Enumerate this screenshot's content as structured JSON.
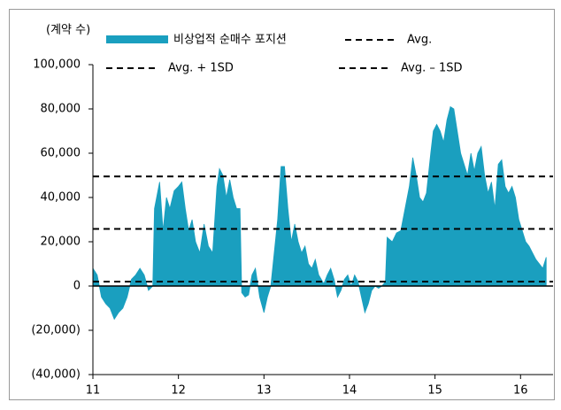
{
  "chart_data": {
    "type": "area",
    "y_label": "(계약 수)",
    "series": [
      {
        "name": "비상업적 순매수 포지션",
        "color": "#1a9fbf",
        "x": [
          11.0,
          11.05,
          11.1,
          11.15,
          11.2,
          11.25,
          11.3,
          11.35,
          11.4,
          11.45,
          11.5,
          11.55,
          11.6,
          11.65,
          11.7,
          11.72,
          11.78,
          11.82,
          11.86,
          11.9,
          11.95,
          12.0,
          12.04,
          12.08,
          12.12,
          12.16,
          12.2,
          12.25,
          12.3,
          12.35,
          12.4,
          12.45,
          12.48,
          12.52,
          12.56,
          12.6,
          12.64,
          12.68,
          12.72,
          12.74,
          12.78,
          12.82,
          12.86,
          12.9,
          12.95,
          13.0,
          13.04,
          13.08,
          13.12,
          13.16,
          13.2,
          13.24,
          13.28,
          13.32,
          13.36,
          13.4,
          13.44,
          13.48,
          13.52,
          13.56,
          13.6,
          13.64,
          13.7,
          13.74,
          13.78,
          13.82,
          13.86,
          13.9,
          13.94,
          13.98,
          14.02,
          14.06,
          14.1,
          14.14,
          14.18,
          14.22,
          14.26,
          14.3,
          14.34,
          14.38,
          14.42,
          14.44,
          14.5,
          14.55,
          14.6,
          14.65,
          14.7,
          14.74,
          14.78,
          14.82,
          14.86,
          14.9,
          14.95,
          14.98,
          15.02,
          15.06,
          15.1,
          15.14,
          15.18,
          15.22,
          15.26,
          15.3,
          15.34,
          15.38,
          15.42,
          15.46,
          15.5,
          15.54,
          15.58,
          15.62,
          15.66,
          15.7,
          15.74,
          15.78,
          15.82,
          15.86,
          15.9,
          15.94,
          15.98,
          16.02,
          16.06,
          16.1,
          16.14,
          16.18,
          16.22,
          16.26,
          16.3
        ],
        "values": [
          8000,
          5000,
          -5000,
          -8000,
          -10000,
          -15000,
          -12000,
          -10000,
          -5000,
          3000,
          5000,
          8000,
          5000,
          -2000,
          0,
          35000,
          47000,
          25000,
          40000,
          35000,
          43000,
          45000,
          47000,
          35000,
          25000,
          30000,
          20000,
          15000,
          28000,
          18000,
          15000,
          45000,
          53000,
          50000,
          40000,
          48000,
          40000,
          35000,
          35000,
          -3000,
          -5000,
          -4000,
          5000,
          8000,
          -5000,
          -12000,
          -5000,
          0,
          15000,
          30000,
          54000,
          54000,
          35000,
          20000,
          28000,
          20000,
          15000,
          18000,
          10000,
          8000,
          12000,
          5000,
          1000,
          5000,
          8000,
          3000,
          -5000,
          -2000,
          3000,
          5000,
          0,
          5000,
          2000,
          -5000,
          -12000,
          -8000,
          -2000,
          0,
          -1000,
          0,
          2000,
          22000,
          20000,
          24000,
          25000,
          35000,
          45000,
          58000,
          50000,
          40000,
          38000,
          42000,
          60000,
          70000,
          73000,
          70000,
          65000,
          75000,
          81000,
          80000,
          70000,
          60000,
          55000,
          50000,
          60000,
          52000,
          60000,
          63000,
          50000,
          42000,
          47000,
          35000,
          55000,
          57000,
          45000,
          42000,
          45000,
          40000,
          30000,
          25000,
          20000,
          18000,
          15000,
          12000,
          10000,
          8000,
          13000
        ]
      }
    ],
    "reference_lines": [
      {
        "name": "Avg.",
        "value": 25800
      },
      {
        "name": "Avg. + 1SD",
        "value": 49500
      },
      {
        "name": "Avg. – 1SD",
        "value": 2000
      }
    ],
    "xlim": [
      11,
      16.38
    ],
    "xticks": [
      11,
      12,
      13,
      14,
      15,
      16
    ],
    "ylim": [
      -40000,
      100000
    ],
    "yticks": [
      {
        "value": -40000,
        "label": "(40,000)"
      },
      {
        "value": -20000,
        "label": "(20,000)"
      },
      0,
      {
        "value": 20000,
        "label": "20,000"
      },
      {
        "value": 40000,
        "label": "40,000"
      },
      {
        "value": 60000,
        "label": "60,000"
      },
      {
        "value": 80000,
        "label": "80,000"
      },
      {
        "value": 100000,
        "label": "100,000"
      }
    ]
  }
}
